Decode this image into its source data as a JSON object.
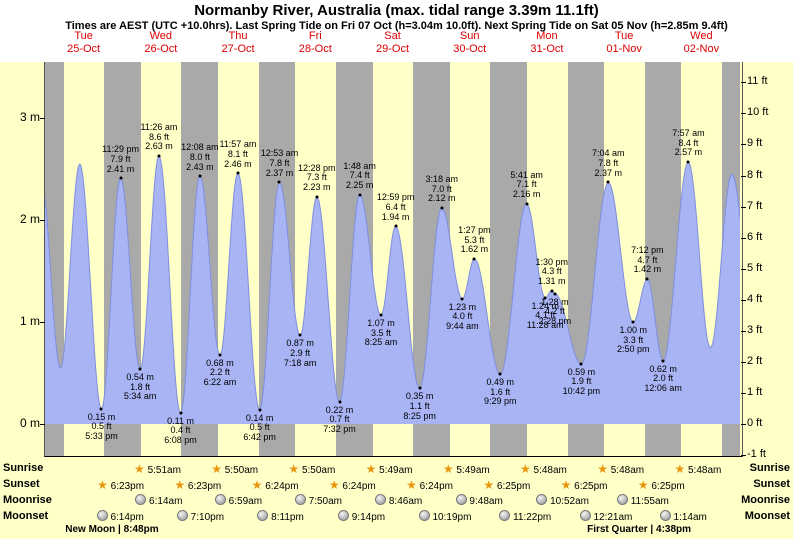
{
  "title": "Normanby River, Australia (max. tidal range 3.39m 11.1ft)",
  "subtitle": "Times are AEST (UTC +10.0hrs). Last Spring Tide on Fri 07 Oct (h=3.04m 10.0ft). Next Spring Tide on Sat 05 Nov (h=2.85m 9.4ft)",
  "days": [
    {
      "weekday": "Tue",
      "date": "25-Oct"
    },
    {
      "weekday": "Wed",
      "date": "26-Oct"
    },
    {
      "weekday": "Thu",
      "date": "27-Oct"
    },
    {
      "weekday": "Fri",
      "date": "28-Oct"
    },
    {
      "weekday": "Sat",
      "date": "29-Oct"
    },
    {
      "weekday": "Sun",
      "date": "30-Oct"
    },
    {
      "weekday": "Mon",
      "date": "31-Oct"
    },
    {
      "weekday": "Tue",
      "date": "01-Nov"
    },
    {
      "weekday": "Wed",
      "date": "02-Nov"
    }
  ],
  "axes": {
    "left_unit": "m",
    "right_unit": "ft",
    "m_ticks": [
      0,
      1,
      2,
      3
    ],
    "ft_ticks": [
      -1,
      0,
      1,
      2,
      3,
      4,
      5,
      6,
      7,
      8,
      9,
      10,
      11
    ]
  },
  "chart_data": {
    "type": "area",
    "title": "Normanby River, Australia tide heights",
    "x_start": "Tue 25-Oct 00:00 AEST",
    "x_hours": [
      0,
      216
    ],
    "y_range_m": [
      -0.3,
      3.55
    ],
    "night_bands_hours": [
      [
        0,
        5.85
      ],
      [
        18.38,
        29.85
      ],
      [
        42.38,
        53.83
      ],
      [
        66.4,
        77.83
      ],
      [
        90.4,
        101.82
      ],
      [
        114.4,
        125.82
      ],
      [
        138.42,
        149.8
      ],
      [
        162.42,
        173.8
      ],
      [
        186.42,
        197.8
      ],
      [
        210.42,
        216
      ]
    ],
    "tide_events": [
      {
        "type": "low",
        "hour": 17.55,
        "height_m": 0.15,
        "labels": [
          "0.15 m",
          "0.5 ft",
          "5:33 pm"
        ]
      },
      {
        "type": "high",
        "hour": 23.48,
        "height_m": 2.41,
        "labels": [
          "11:29 pm",
          "7.9 ft",
          "2.41 m"
        ]
      },
      {
        "type": "low",
        "hour": 29.57,
        "height_m": 0.54,
        "labels": [
          "0.54 m",
          "1.8 ft",
          "5:34 am"
        ]
      },
      {
        "type": "high",
        "hour": 35.43,
        "height_m": 2.63,
        "labels": [
          "11:26 am",
          "8.6 ft",
          "2.63 m"
        ]
      },
      {
        "type": "low",
        "hour": 42.13,
        "height_m": 0.11,
        "labels": [
          "0.11 m",
          "0.4 ft",
          "6:08 pm"
        ]
      },
      {
        "type": "high",
        "hour": 48.13,
        "height_m": 2.43,
        "labels": [
          "12:08 am",
          "8.0 ft",
          "2.43 m"
        ]
      },
      {
        "type": "low",
        "hour": 54.37,
        "height_m": 0.68,
        "labels": [
          "0.68 m",
          "2.2 ft",
          "6:22 am"
        ]
      },
      {
        "type": "high",
        "hour": 59.95,
        "height_m": 2.46,
        "labels": [
          "11:57 am",
          "8.1 ft",
          "2.46 m"
        ]
      },
      {
        "type": "low",
        "hour": 66.7,
        "height_m": 0.14,
        "labels": [
          "0.14 m",
          "0.5 ft",
          "6:42 pm"
        ]
      },
      {
        "type": "high",
        "hour": 72.88,
        "height_m": 2.37,
        "labels": [
          "12:53 am",
          "7.8 ft",
          "2.37 m"
        ]
      },
      {
        "type": "low",
        "hour": 79.3,
        "height_m": 0.87,
        "labels": [
          "0.87 m",
          "2.9 ft",
          "7:18 am"
        ]
      },
      {
        "type": "high",
        "hour": 84.47,
        "height_m": 2.23,
        "labels": [
          "12:28 pm",
          "7.3 ft",
          "2.23 m"
        ]
      },
      {
        "type": "low",
        "hour": 91.53,
        "height_m": 0.22,
        "labels": [
          "0.22 m",
          "0.7 ft",
          "7:32 pm"
        ]
      },
      {
        "type": "high",
        "hour": 97.8,
        "height_m": 2.25,
        "labels": [
          "1:48 am",
          "7.4 ft",
          "2.25 m"
        ]
      },
      {
        "type": "low",
        "hour": 104.42,
        "height_m": 1.07,
        "labels": [
          "1.07 m",
          "3.5 ft",
          "8:25 am"
        ]
      },
      {
        "type": "high",
        "hour": 108.98,
        "height_m": 1.94,
        "labels": [
          "12:59 pm",
          "6.4 ft",
          "1.94 m"
        ]
      },
      {
        "type": "low",
        "hour": 116.42,
        "height_m": 0.35,
        "labels": [
          "0.35 m",
          "1.1 ft",
          "8:25 pm"
        ]
      },
      {
        "type": "high",
        "hour": 123.3,
        "height_m": 2.12,
        "labels": [
          "3:18 am",
          "7.0 ft",
          "2.12 m"
        ]
      },
      {
        "type": "low",
        "hour": 129.73,
        "height_m": 1.23,
        "labels": [
          "1.23 m",
          "4.0 ft",
          "9:44 am"
        ]
      },
      {
        "type": "high",
        "hour": 133.45,
        "height_m": 1.62,
        "labels": [
          "1:27 pm",
          "5.3 ft",
          "1.62 m"
        ]
      },
      {
        "type": "low",
        "hour": 141.48,
        "height_m": 0.49,
        "labels": [
          "0.49 m",
          "1.6 ft",
          "9:29 pm"
        ]
      },
      {
        "type": "high",
        "hour": 149.68,
        "height_m": 2.16,
        "labels": [
          "5:41 am",
          "7.1 ft",
          "2.16 m"
        ]
      },
      {
        "type": "low",
        "hour": 155.47,
        "height_m": 1.24,
        "labels": [
          "1.24 m",
          "4.1 ft",
          "11:28 am"
        ]
      },
      {
        "type": "high",
        "hour": 157.5,
        "height_m": 1.31,
        "labels": [
          "1:30 pm",
          "4.3 ft",
          "1.31 m"
        ]
      },
      {
        "type": "low",
        "hour": 158.47,
        "height_m": 1.28,
        "labels": [
          "1.28 m",
          "4.2 ft",
          "2:28 pm"
        ]
      },
      {
        "type": "low",
        "hour": 166.7,
        "height_m": 0.59,
        "labels": [
          "0.59 m",
          "1.9 ft",
          "10:42 pm"
        ]
      },
      {
        "type": "high",
        "hour": 175.07,
        "height_m": 2.37,
        "labels": [
          "7:04 am",
          "7.8 ft",
          "2.37 m"
        ]
      },
      {
        "type": "low",
        "hour": 182.83,
        "height_m": 1.0,
        "labels": [
          "1.00 m",
          "3.3 ft",
          "2:50 pm"
        ]
      },
      {
        "type": "high",
        "hour": 187.2,
        "height_m": 1.42,
        "labels": [
          "7:12 pm",
          "4.7 ft",
          "1.42 m"
        ]
      },
      {
        "type": "low",
        "hour": 192.1,
        "height_m": 0.62,
        "labels": [
          "0.62 m",
          "2.0 ft",
          "12:06 am"
        ]
      },
      {
        "type": "high",
        "hour": 199.95,
        "height_m": 2.57,
        "labels": [
          "7:57 am",
          "8.4 ft",
          "2.57 m"
        ]
      }
    ],
    "unlabeled_curve_points": [
      [
        -1.2,
        2.4
      ],
      [
        4.8,
        0.55
      ],
      [
        10.8,
        2.55
      ],
      [
        206.8,
        0.75
      ],
      [
        213.5,
        2.45
      ],
      [
        220.8,
        0.8
      ]
    ]
  },
  "astro": {
    "row_labels": [
      "Sunrise",
      "Sunset",
      "Moonrise",
      "Moonset"
    ],
    "sunrise": {
      "icon": "sun-star-icon",
      "entries": [
        {
          "time": "5:51am",
          "hour": 29.85
        },
        {
          "time": "5:50am",
          "hour": 53.83
        },
        {
          "time": "5:50am",
          "hour": 77.83
        },
        {
          "time": "5:49am",
          "hour": 101.82
        },
        {
          "time": "5:49am",
          "hour": 125.82
        },
        {
          "time": "5:48am",
          "hour": 149.8
        },
        {
          "time": "5:48am",
          "hour": 173.8
        },
        {
          "time": "5:48am",
          "hour": 197.8
        }
      ]
    },
    "sunset": {
      "icon": "sun-star-icon",
      "entries": [
        {
          "time": "6:23pm",
          "hour": 18.38
        },
        {
          "time": "6:23pm",
          "hour": 42.38
        },
        {
          "time": "6:24pm",
          "hour": 66.4
        },
        {
          "time": "6:24pm",
          "hour": 90.4
        },
        {
          "time": "6:24pm",
          "hour": 114.4
        },
        {
          "time": "6:25pm",
          "hour": 138.42
        },
        {
          "time": "6:25pm",
          "hour": 162.42
        },
        {
          "time": "6:25pm",
          "hour": 186.42
        }
      ]
    },
    "moonrise": {
      "icon": "moon-icon",
      "entries": [
        {
          "time": "6:14am",
          "hour": 30.23
        },
        {
          "time": "6:59am",
          "hour": 54.98
        },
        {
          "time": "7:50am",
          "hour": 79.83
        },
        {
          "time": "8:46am",
          "hour": 104.77
        },
        {
          "time": "9:48am",
          "hour": 129.8
        },
        {
          "time": "10:52am",
          "hour": 154.87
        },
        {
          "time": "11:55am",
          "hour": 179.92
        }
      ]
    },
    "moonset": {
      "icon": "moon-icon",
      "entries": [
        {
          "time": "6:14pm",
          "hour": 18.23
        },
        {
          "time": "7:10pm",
          "hour": 43.17
        },
        {
          "time": "8:11pm",
          "hour": 68.18
        },
        {
          "time": "9:14pm",
          "hour": 93.23
        },
        {
          "time": "10:19pm",
          "hour": 118.32
        },
        {
          "time": "11:22pm",
          "hour": 143.37
        },
        {
          "time": "12:21am",
          "hour": 168.35
        },
        {
          "time": "1:14am",
          "hour": 193.23
        }
      ]
    }
  },
  "moon_phases": [
    {
      "label": "New Moon | 8:48pm",
      "name": "New Moon",
      "time": "8:48pm",
      "hour": 20.8
    },
    {
      "label": "First Quarter | 4:38pm",
      "name": "First Quarter",
      "time": "4:38pm",
      "hour": 184.63
    }
  ],
  "colors": {
    "page_bg": "#ffffc8",
    "header_bg": "#ffffff",
    "night_band": "#a9a9a9",
    "day_band": "#ffffc8",
    "tide_fill": "#a8b4f4",
    "tide_stroke": "#7e8fe0",
    "date_red": "#dd0000",
    "star_gold": "#e8950c"
  }
}
